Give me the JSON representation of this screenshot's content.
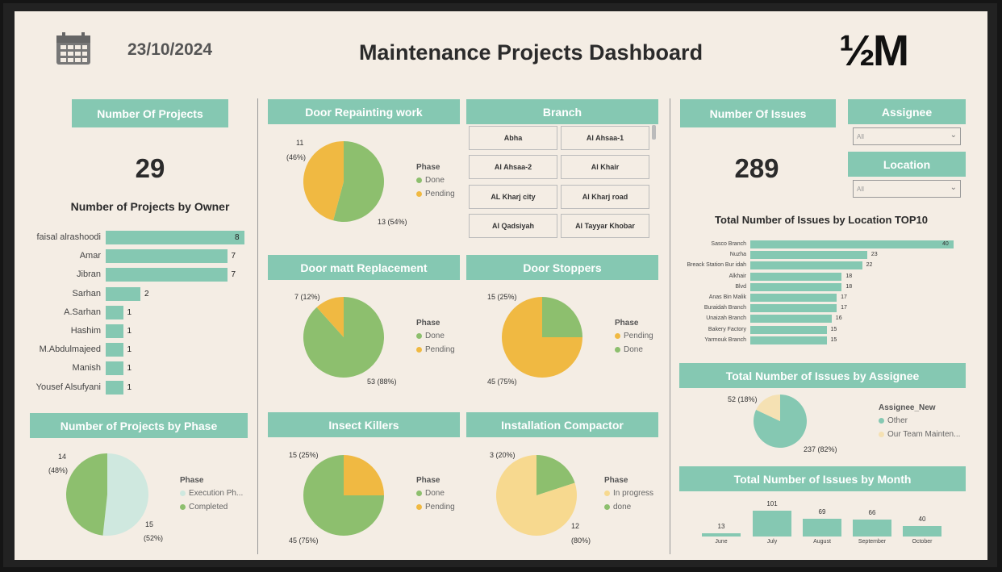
{
  "header": {
    "date": "23/10/2024",
    "title": "Maintenance Projects Dashboard",
    "logo_text": "½M"
  },
  "colors": {
    "accent": "#85c8b2",
    "done": "#8dbf6e",
    "pending": "#f0b942",
    "light_green": "#cfe8df",
    "light_yellow": "#f7d98f",
    "bg": "#f4ede4"
  },
  "projects": {
    "header": "Number Of Projects",
    "count": "29"
  },
  "issues": {
    "header": "Number Of Issues",
    "count": "289"
  },
  "filters": {
    "assignee_label": "Assignee",
    "assignee_value": "All",
    "location_label": "Location",
    "location_value": "All"
  },
  "branch": {
    "header": "Branch",
    "items": [
      "Abha",
      "Al Ahsaa-1",
      "Al Ahsaa-2",
      "Al Khair",
      "AL Kharj city",
      "Al Kharj road",
      "Al Qadsiyah",
      "Al Tayyar Khobar"
    ]
  },
  "chart_data": [
    {
      "id": "owner",
      "type": "bar",
      "title": "Number of Projects by Owner",
      "categories": [
        "faisal alrashoodi",
        "Amar",
        "Jibran",
        "Sarhan",
        "A.Sarhan",
        "Hashim",
        "M.Abdulmajeed",
        "Manish",
        "Yousef Alsufyani"
      ],
      "values": [
        8,
        7,
        7,
        2,
        1,
        1,
        1,
        1,
        1
      ],
      "xlim": [
        0,
        8
      ]
    },
    {
      "id": "phase",
      "type": "pie",
      "title": "Number of Projects by Phase",
      "legend_title": "Phase",
      "slices": [
        {
          "label": "Execution Ph...",
          "value": 15,
          "text": "15",
          "pct": "(52%)",
          "color": "#cfe8df"
        },
        {
          "label": "Completed",
          "value": 14,
          "text": "14",
          "pct": "(48%)",
          "color": "#8dbf6e"
        }
      ]
    },
    {
      "id": "door_repaint",
      "type": "pie",
      "title": "Door Repainting work",
      "legend_title": "Phase",
      "slices": [
        {
          "label": "Done",
          "value": 13,
          "text": "13 (54%)",
          "color": "#8dbf6e"
        },
        {
          "label": "Pending",
          "value": 11,
          "text": "11",
          "pct": "(46%)",
          "color": "#f0b942"
        }
      ]
    },
    {
      "id": "door_matt",
      "type": "pie",
      "title": "Door matt Replacement",
      "legend_title": "Phase",
      "slices": [
        {
          "label": "Done",
          "value": 53,
          "text": "53 (88%)",
          "color": "#8dbf6e"
        },
        {
          "label": "Pending",
          "value": 7,
          "text": "7 (12%)",
          "color": "#f0b942"
        }
      ]
    },
    {
      "id": "door_stoppers",
      "type": "pie",
      "title": "Door Stoppers",
      "legend_title": "Phase",
      "slices": [
        {
          "label": "Done",
          "value": 15,
          "text": "15 (25%)",
          "color": "#8dbf6e"
        },
        {
          "label": "Pending",
          "value": 45,
          "text": "45 (75%)",
          "color": "#f0b942"
        }
      ],
      "legend_order": [
        "Pending",
        "Done"
      ]
    },
    {
      "id": "insect",
      "type": "pie",
      "title": "Insect Killers",
      "legend_title": "Phase",
      "slices": [
        {
          "label": "Pending",
          "value": 15,
          "text": "15 (25%)",
          "color": "#f0b942"
        },
        {
          "label": "Done",
          "value": 45,
          "text": "45 (75%)",
          "color": "#8dbf6e"
        }
      ],
      "legend_order": [
        "Done",
        "Pending"
      ]
    },
    {
      "id": "compactor",
      "type": "pie",
      "title": "Installation Compactor",
      "legend_title": "Phase",
      "slices": [
        {
          "label": "done",
          "value": 3,
          "text": "3 (20%)",
          "color": "#8dbf6e"
        },
        {
          "label": "In progress",
          "value": 12,
          "text": "12",
          "pct": "(80%)",
          "color": "#f7d98f"
        }
      ],
      "legend_order": [
        "In progress",
        "done"
      ]
    },
    {
      "id": "location",
      "type": "bar",
      "title": "Total Number of Issues by Location TOP10",
      "categories": [
        "Sasco Branch",
        "Nuzha",
        "Breack Station Bur idah",
        "Alkhair",
        "Blvd",
        "Anas Bin Malik",
        "Buraidah Branch",
        "Unaizah Branch",
        "Bakery Factory",
        "Yarmouk Branch"
      ],
      "values": [
        40,
        23,
        22,
        18,
        18,
        17,
        17,
        16,
        15,
        15
      ],
      "xlim": [
        0,
        40
      ]
    },
    {
      "id": "assignee",
      "type": "pie",
      "title": "Total Number of Issues by Assignee",
      "legend_title": "Assignee_New",
      "slices": [
        {
          "label": "Other",
          "value": 237,
          "text": "237 (82%)",
          "color": "#85c8b2"
        },
        {
          "label": "Our Team Mainten...",
          "value": 52,
          "text": "52 (18%)",
          "color": "#f5e1b3"
        }
      ]
    },
    {
      "id": "month",
      "type": "bar",
      "title": "Total Number of Issues by Month",
      "categories": [
        "June",
        "July",
        "August",
        "September",
        "October"
      ],
      "values": [
        13,
        101,
        69,
        66,
        40
      ],
      "ylim": [
        0,
        101
      ]
    }
  ]
}
